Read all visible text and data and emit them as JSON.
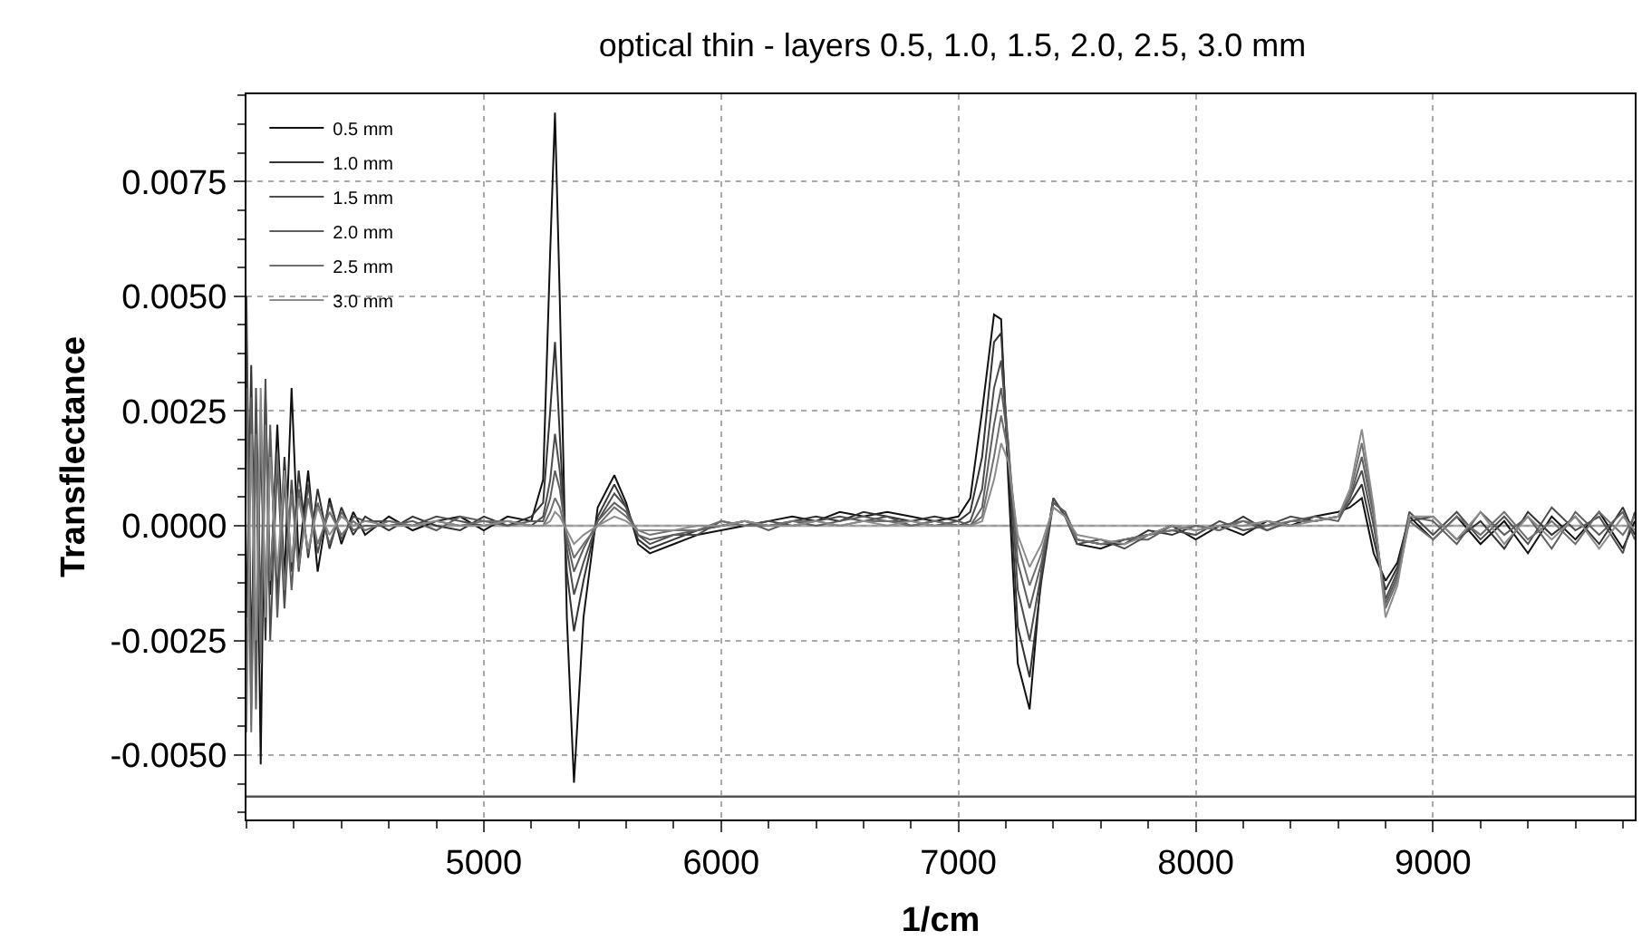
{
  "chart_data": {
    "type": "line",
    "title": "optical thin - layers 0.5, 1.0, 1.5, 2.0, 2.5, 3.0 mm",
    "xlabel": "1/cm",
    "ylabel": "Transflectance",
    "x": [
      4000,
      4020,
      4040,
      4060,
      4080,
      4100,
      4130,
      4160,
      4190,
      4220,
      4260,
      4300,
      4350,
      4400,
      4450,
      4500,
      4600,
      4700,
      4800,
      4900,
      5000,
      5100,
      5200,
      5250,
      5280,
      5300,
      5320,
      5350,
      5380,
      5420,
      5480,
      5550,
      5600,
      5650,
      5700,
      5800,
      5900,
      6000,
      6100,
      6200,
      6300,
      6400,
      6500,
      6600,
      6700,
      6800,
      6900,
      7000,
      7050,
      7100,
      7150,
      7180,
      7210,
      7250,
      7300,
      7350,
      7400,
      7450,
      7500,
      7600,
      7700,
      7800,
      7900,
      8000,
      8100,
      8200,
      8300,
      8400,
      8500,
      8600,
      8650,
      8700,
      8750,
      8800,
      8850,
      8900,
      9000,
      9100,
      9200,
      9300,
      9400,
      9500,
      9600,
      9700,
      9800,
      9850
    ],
    "series": [
      {
        "name": "0.5 mm",
        "color": "#111111",
        "values": [
          0.004,
          -0.003,
          0.0025,
          -0.0052,
          0.0028,
          -0.0015,
          0.0022,
          -0.0012,
          0.003,
          -0.0008,
          0.0012,
          -0.001,
          0.0006,
          -0.0004,
          0.0003,
          -0.0002,
          0.0002,
          -0.0001,
          0.0001,
          0.0002,
          -0.0001,
          0.0002,
          0.0001,
          0.001,
          0.006,
          0.009,
          0.005,
          -0.002,
          -0.0056,
          -0.002,
          0.0004,
          0.0011,
          0.0005,
          -0.0004,
          -0.0006,
          -0.0004,
          -0.0002,
          -0.0001,
          0.0,
          0.0001,
          0.0002,
          0.0001,
          0.0003,
          0.0002,
          0.0003,
          0.0002,
          0.0001,
          0.0002,
          0.0006,
          0.0025,
          0.0046,
          0.0045,
          0.001,
          -0.003,
          -0.004,
          -0.001,
          0.0006,
          0.0002,
          -0.0004,
          -0.0005,
          -0.0003,
          -0.0002,
          0.0,
          -0.0003,
          0.0,
          -0.0002,
          0.0001,
          0.0,
          0.0002,
          0.0003,
          0.0004,
          0.0006,
          -0.0006,
          -0.0012,
          -0.0008,
          0.0002,
          -0.0003,
          0.0002,
          -0.0004,
          0.0001,
          -0.0006,
          0.0002,
          -0.0003,
          0.0003,
          -0.0005,
          0.0001
        ]
      },
      {
        "name": "1.0 mm",
        "color": "#333333",
        "values": [
          -0.002,
          0.0035,
          -0.0028,
          0.002,
          -0.0025,
          0.0018,
          -0.0016,
          0.0015,
          -0.001,
          0.0012,
          -0.0007,
          0.0008,
          -0.0005,
          0.0004,
          -0.0002,
          0.0002,
          -0.0001,
          0.0002,
          0.0,
          -0.0001,
          0.0002,
          0.0,
          0.0002,
          0.0005,
          0.0025,
          0.004,
          0.002,
          -0.001,
          -0.0023,
          -0.0012,
          0.0002,
          0.0009,
          0.0004,
          -0.0003,
          -0.0005,
          -0.0003,
          -0.0001,
          0.0,
          0.0001,
          0.0,
          0.0001,
          0.0002,
          0.0001,
          0.0003,
          0.0002,
          0.0001,
          0.0002,
          0.0001,
          0.0003,
          0.0015,
          0.004,
          0.0042,
          0.0015,
          -0.0022,
          -0.0033,
          -0.0012,
          0.0005,
          0.0003,
          -0.0003,
          -0.0004,
          -0.0004,
          -0.0001,
          -0.0002,
          0.0,
          -0.0001,
          0.0002,
          -0.0001,
          0.0001,
          0.0001,
          0.0002,
          0.0005,
          0.0009,
          -0.0003,
          -0.0014,
          -0.0009,
          0.0001,
          0.0002,
          -0.0003,
          0.0001,
          -0.0005,
          0.0003,
          -0.0002,
          0.0002,
          -0.0004,
          0.0004,
          -0.0002
        ]
      },
      {
        "name": "1.5 mm",
        "color": "#4d4d4d",
        "values": [
          0.005,
          -0.004,
          0.003,
          -0.002,
          0.0032,
          -0.0025,
          0.0014,
          -0.0018,
          0.001,
          -0.001,
          0.0009,
          -0.0006,
          0.0005,
          -0.0003,
          0.0002,
          0.0001,
          0.0001,
          0.0,
          0.0002,
          0.0001,
          0.0,
          0.0001,
          0.0,
          0.0002,
          0.001,
          0.002,
          0.0012,
          -0.0005,
          -0.0015,
          -0.0008,
          0.0001,
          0.0007,
          0.0004,
          -0.0002,
          -0.0004,
          -0.0002,
          -0.0002,
          0.0001,
          0.0,
          0.0001,
          0.0,
          0.0001,
          0.0002,
          0.0001,
          0.0002,
          0.0,
          0.0001,
          0.0,
          0.0001,
          0.0008,
          0.003,
          0.0036,
          0.0018,
          -0.0014,
          -0.0025,
          -0.001,
          0.0006,
          0.0002,
          -0.0004,
          -0.0003,
          -0.0005,
          -0.0002,
          -0.0001,
          -0.0002,
          0.0001,
          -0.0001,
          0.0,
          0.0002,
          0.0001,
          0.0002,
          0.0006,
          0.0012,
          0.0,
          -0.0016,
          -0.001,
          0.0003,
          -0.0002,
          0.0003,
          -0.0003,
          0.0002,
          -0.0004,
          0.0004,
          -0.0001,
          0.0002,
          -0.0006,
          0.0003
        ]
      },
      {
        "name": "2.0 mm",
        "color": "#5e5e5e",
        "values": [
          -0.0035,
          0.0028,
          -0.004,
          0.0025,
          -0.0018,
          0.0022,
          -0.002,
          0.001,
          -0.0014,
          0.0008,
          -0.0006,
          0.0005,
          -0.0004,
          0.0003,
          -0.0001,
          0.0,
          0.0,
          0.0001,
          -0.0001,
          0.0002,
          0.0001,
          0.0,
          0.0001,
          0.0001,
          0.0006,
          0.0012,
          0.0008,
          -0.0003,
          -0.001,
          -0.0005,
          0.0001,
          0.0005,
          0.0003,
          -0.0002,
          -0.0003,
          -0.0002,
          -0.0001,
          0.0,
          0.0001,
          -0.0001,
          0.0001,
          0.0,
          0.0001,
          0.0002,
          0.0001,
          0.0001,
          0.0,
          0.0001,
          0.0,
          0.0004,
          0.0022,
          0.003,
          0.0018,
          -0.0008,
          -0.0018,
          -0.0008,
          0.0005,
          0.0003,
          -0.0003,
          -0.0004,
          -0.0003,
          -0.0003,
          0.0,
          -0.0001,
          0.0,
          0.0001,
          -0.0001,
          0.0001,
          0.0002,
          0.0001,
          0.0006,
          0.0015,
          0.0002,
          -0.0017,
          -0.0011,
          0.0002,
          0.0001,
          -0.0004,
          0.0003,
          -0.0002,
          0.0002,
          -0.0005,
          0.0003,
          -0.0002,
          0.0003,
          -0.0003
        ]
      },
      {
        "name": "2.5 mm",
        "color": "#707070",
        "values": [
          0.003,
          -0.0045,
          0.002,
          -0.003,
          0.0022,
          -0.0012,
          0.0016,
          -0.0014,
          0.0007,
          -0.0009,
          0.0006,
          -0.0004,
          0.0003,
          -0.0002,
          0.0001,
          -0.0001,
          0.0001,
          0.0,
          0.0001,
          0.0,
          0.0001,
          0.0001,
          0.0,
          0.0,
          0.0003,
          0.0006,
          0.0004,
          -0.0002,
          -0.0007,
          -0.0004,
          0.0,
          0.0004,
          0.0002,
          -0.0001,
          -0.0002,
          -0.0001,
          -0.0001,
          0.0001,
          0.0,
          0.0,
          0.0001,
          0.0001,
          0.0,
          0.0001,
          0.0001,
          0.0,
          0.0001,
          0.0,
          0.0,
          0.0002,
          0.0015,
          0.0024,
          0.0016,
          -0.0004,
          -0.0013,
          -0.0006,
          0.0004,
          0.0002,
          -0.0003,
          -0.0004,
          -0.0003,
          -0.0002,
          -0.0001,
          0.0,
          -0.0001,
          0.0001,
          0.0,
          0.0001,
          0.0001,
          0.0002,
          0.0007,
          0.0018,
          0.0003,
          -0.0018,
          -0.0012,
          0.0001,
          -0.0003,
          0.0002,
          -0.0002,
          0.0003,
          -0.0003,
          0.0001,
          -0.0004,
          0.0003,
          -0.0002,
          0.0002
        ]
      },
      {
        "name": "3.0 mm",
        "color": "#8c8c8c",
        "values": [
          -0.0045,
          0.002,
          -0.0025,
          0.003,
          -0.002,
          0.0015,
          -0.001,
          0.0012,
          -0.0008,
          0.0006,
          -0.0005,
          0.0004,
          -0.0002,
          0.0002,
          0.0,
          0.0001,
          0.0,
          0.0,
          0.0001,
          0.0,
          0.0,
          0.0001,
          0.0,
          0.0,
          0.0001,
          0.0003,
          0.0002,
          -0.0001,
          -0.0004,
          -0.0002,
          0.0,
          0.0002,
          0.0001,
          -0.0001,
          -0.0001,
          -0.0001,
          0.0,
          0.0,
          0.0001,
          0.0,
          0.0,
          0.0001,
          0.0,
          0.0001,
          0.0,
          0.0001,
          0.0,
          0.0,
          0.0,
          0.0001,
          0.001,
          0.0018,
          0.0014,
          -0.0002,
          -0.0009,
          -0.0004,
          0.0004,
          0.0002,
          -0.0002,
          -0.0003,
          -0.0004,
          -0.0002,
          0.0,
          -0.0001,
          0.0,
          0.0,
          0.0001,
          0.0,
          0.0001,
          0.0002,
          0.0008,
          0.0021,
          0.0004,
          -0.002,
          -0.0013,
          0.0002,
          0.0002,
          -0.0003,
          0.0003,
          -0.0004,
          0.0002,
          -0.0003,
          0.0002,
          -0.0005,
          0.0002,
          -0.0001
        ]
      }
    ],
    "xlim": [
      4000,
      9850
    ],
    "xticks": [
      5000,
      6000,
      7000,
      8000,
      9000
    ],
    "ylim": [
      -0.0064,
      0.0094
    ],
    "yticks": [
      {
        "value": -0.005,
        "label": "-0.0050"
      },
      {
        "value": -0.0025,
        "label": "-0.0025"
      },
      {
        "value": 0,
        "label": "0.0000"
      },
      {
        "value": 0.0025,
        "label": "0.0025"
      },
      {
        "value": 0.005,
        "label": "0.0050"
      },
      0.0075
    ],
    "ref_lines": [
      {
        "axis": "y",
        "value": 0,
        "color": "#999999"
      },
      {
        "axis": "y",
        "value": -0.0059,
        "color": "#555555"
      }
    ],
    "grid": true,
    "legend": "top left",
    "marker": "none",
    "line_style": "solid"
  }
}
